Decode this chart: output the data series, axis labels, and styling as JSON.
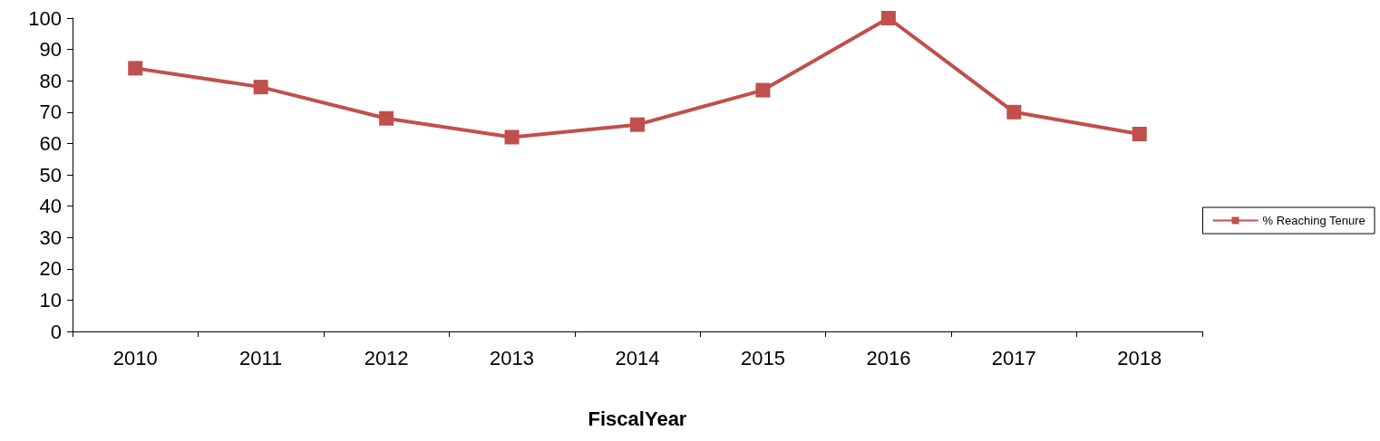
{
  "chart_data": {
    "type": "line",
    "xlabel": "FiscalYear",
    "categories": [
      "2010",
      "2011",
      "2012",
      "2013",
      "2014",
      "2015",
      "2016",
      "2017",
      "2018"
    ],
    "series": [
      {
        "name": "% Reaching Tenure",
        "color": "#c0504d",
        "values": [
          84,
          78,
          68,
          62,
          66,
          77,
          100,
          70,
          63
        ]
      }
    ],
    "ylim": [
      0,
      100
    ],
    "yticks": [
      0,
      10,
      20,
      30,
      40,
      50,
      60,
      70,
      80,
      90,
      100
    ],
    "grid": false,
    "legend": "right",
    "marker": "square",
    "line_style": "solid"
  }
}
